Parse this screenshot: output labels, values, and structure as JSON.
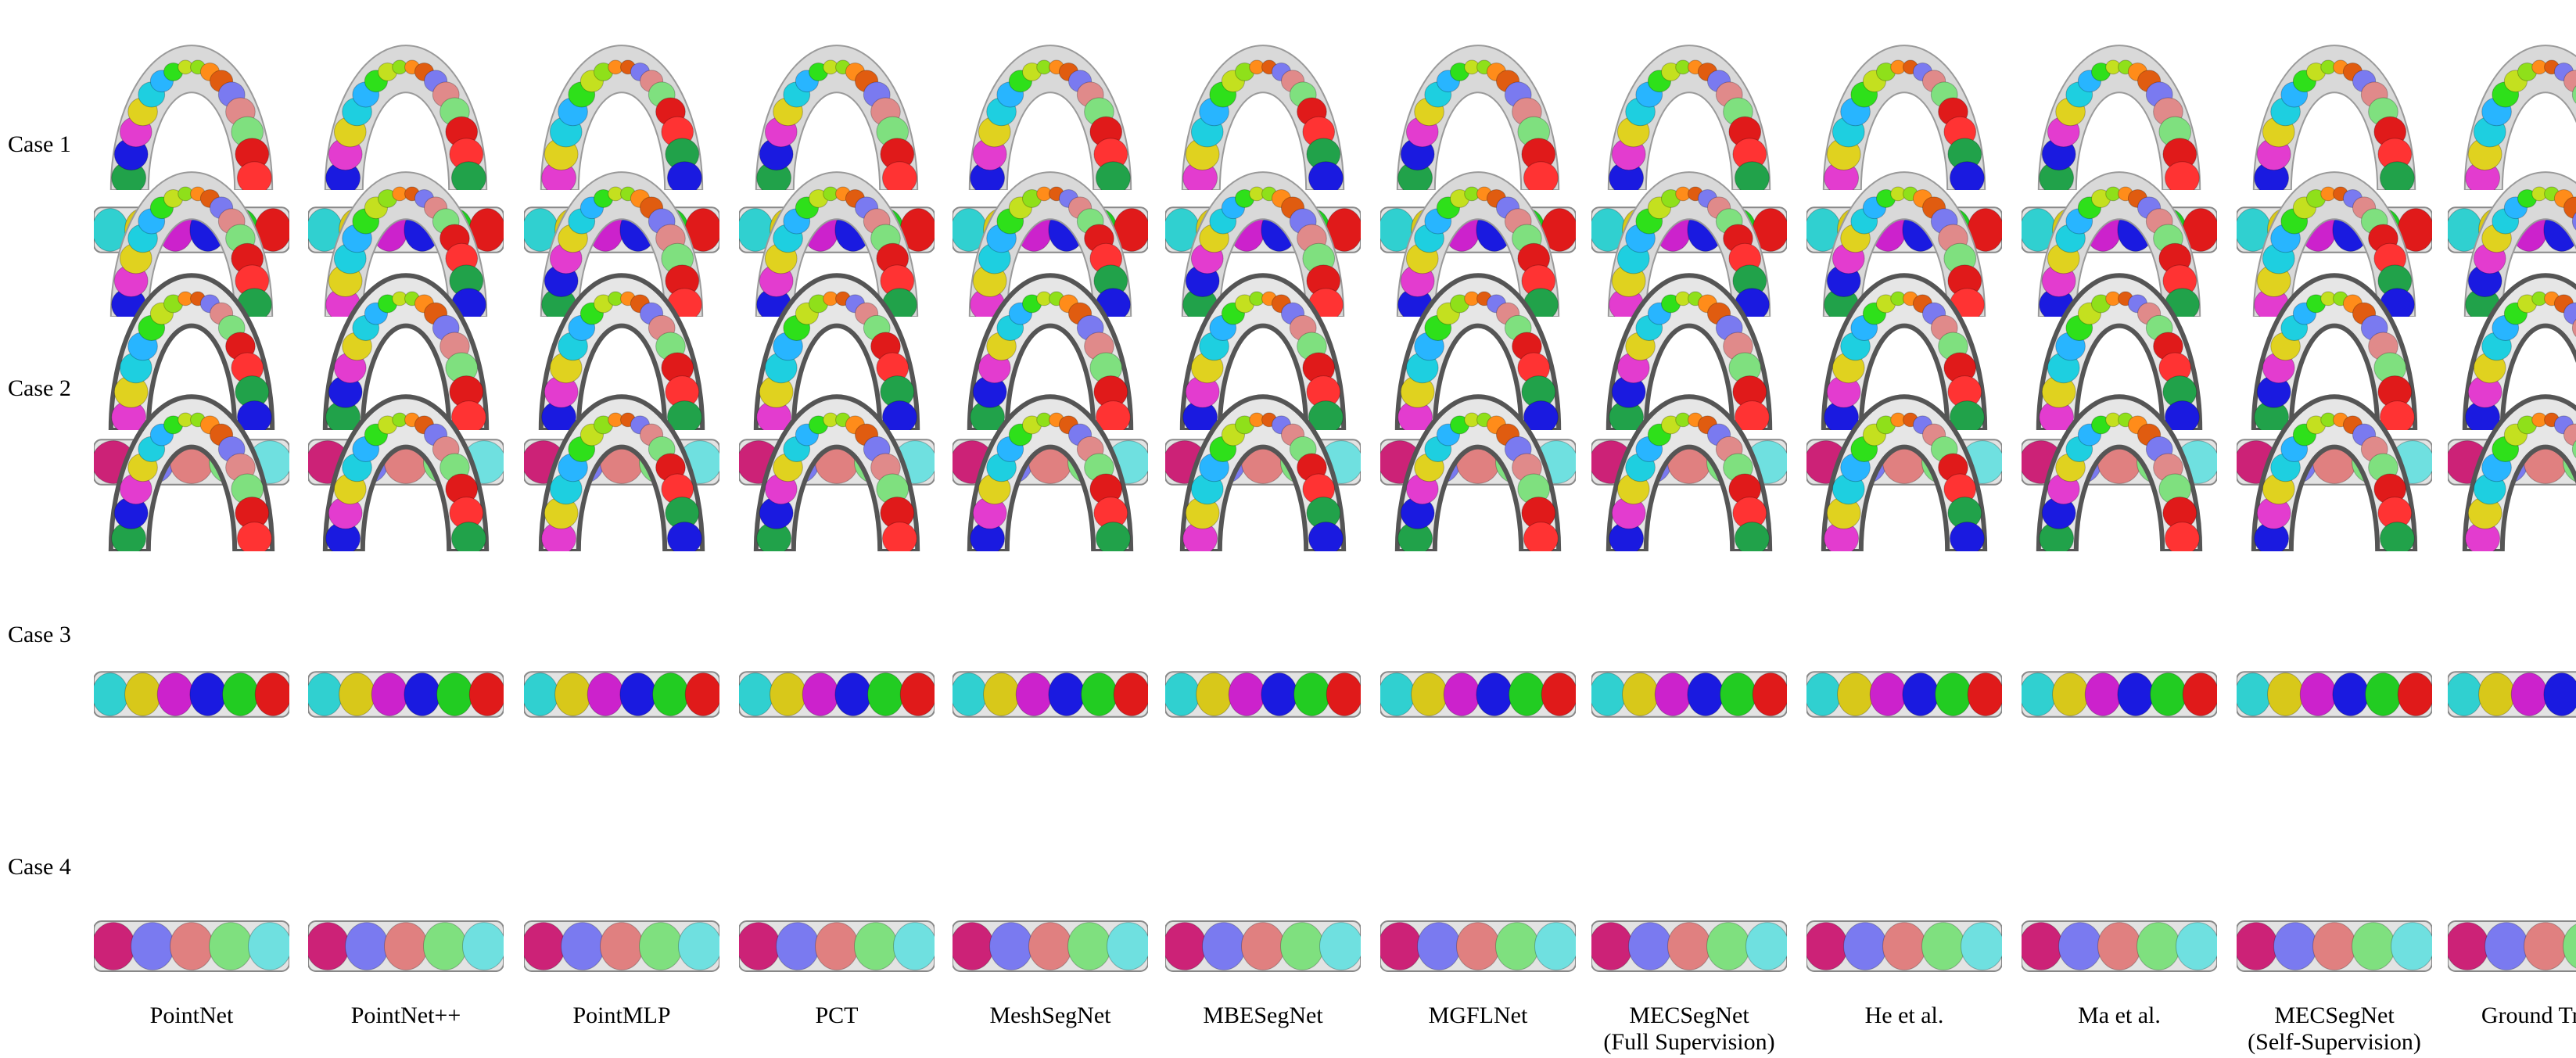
{
  "rows": [
    {
      "label": "Case 1"
    },
    {
      "label": "Case 2"
    },
    {
      "label": "Case 3"
    },
    {
      "label": "Case 4"
    }
  ],
  "columns": [
    {
      "label": "PointNet"
    },
    {
      "label": "PointNet++"
    },
    {
      "label": "PointMLP"
    },
    {
      "label": "PCT"
    },
    {
      "label": "MeshSegNet"
    },
    {
      "label": "MBESegNet"
    },
    {
      "label": "MGFLNet"
    },
    {
      "label": "MECSegNet\n(Full Supervision)"
    },
    {
      "label": "He et al."
    },
    {
      "label": "Ma et al."
    },
    {
      "label": "MECSegNet\n(Self-Supervision)"
    },
    {
      "label": "Ground Truth"
    }
  ],
  "colors": {
    "gum": "#d9d9d9",
    "arch": [
      "#21a24a",
      "#1a1ae0",
      "#e33ccf",
      "#e0d21f",
      "#1ecfe0",
      "#28b5ff",
      "#2ee01a",
      "#c4e01f",
      "#8fe01a",
      "#ff8c1a",
      "#e05c10",
      "#7a7af0",
      "#e08a8a",
      "#7fe07f",
      "#e01a1a",
      "#ff3333"
    ],
    "strip": [
      "#30d0d0",
      "#d8c81a",
      "#cc22cc",
      "#1a1ae0",
      "#22cc22",
      "#e01a1a"
    ],
    "strip_lower": [
      "#cc2277",
      "#7a7af0",
      "#e08080",
      "#7fe07f",
      "#6fe0e0"
    ]
  }
}
